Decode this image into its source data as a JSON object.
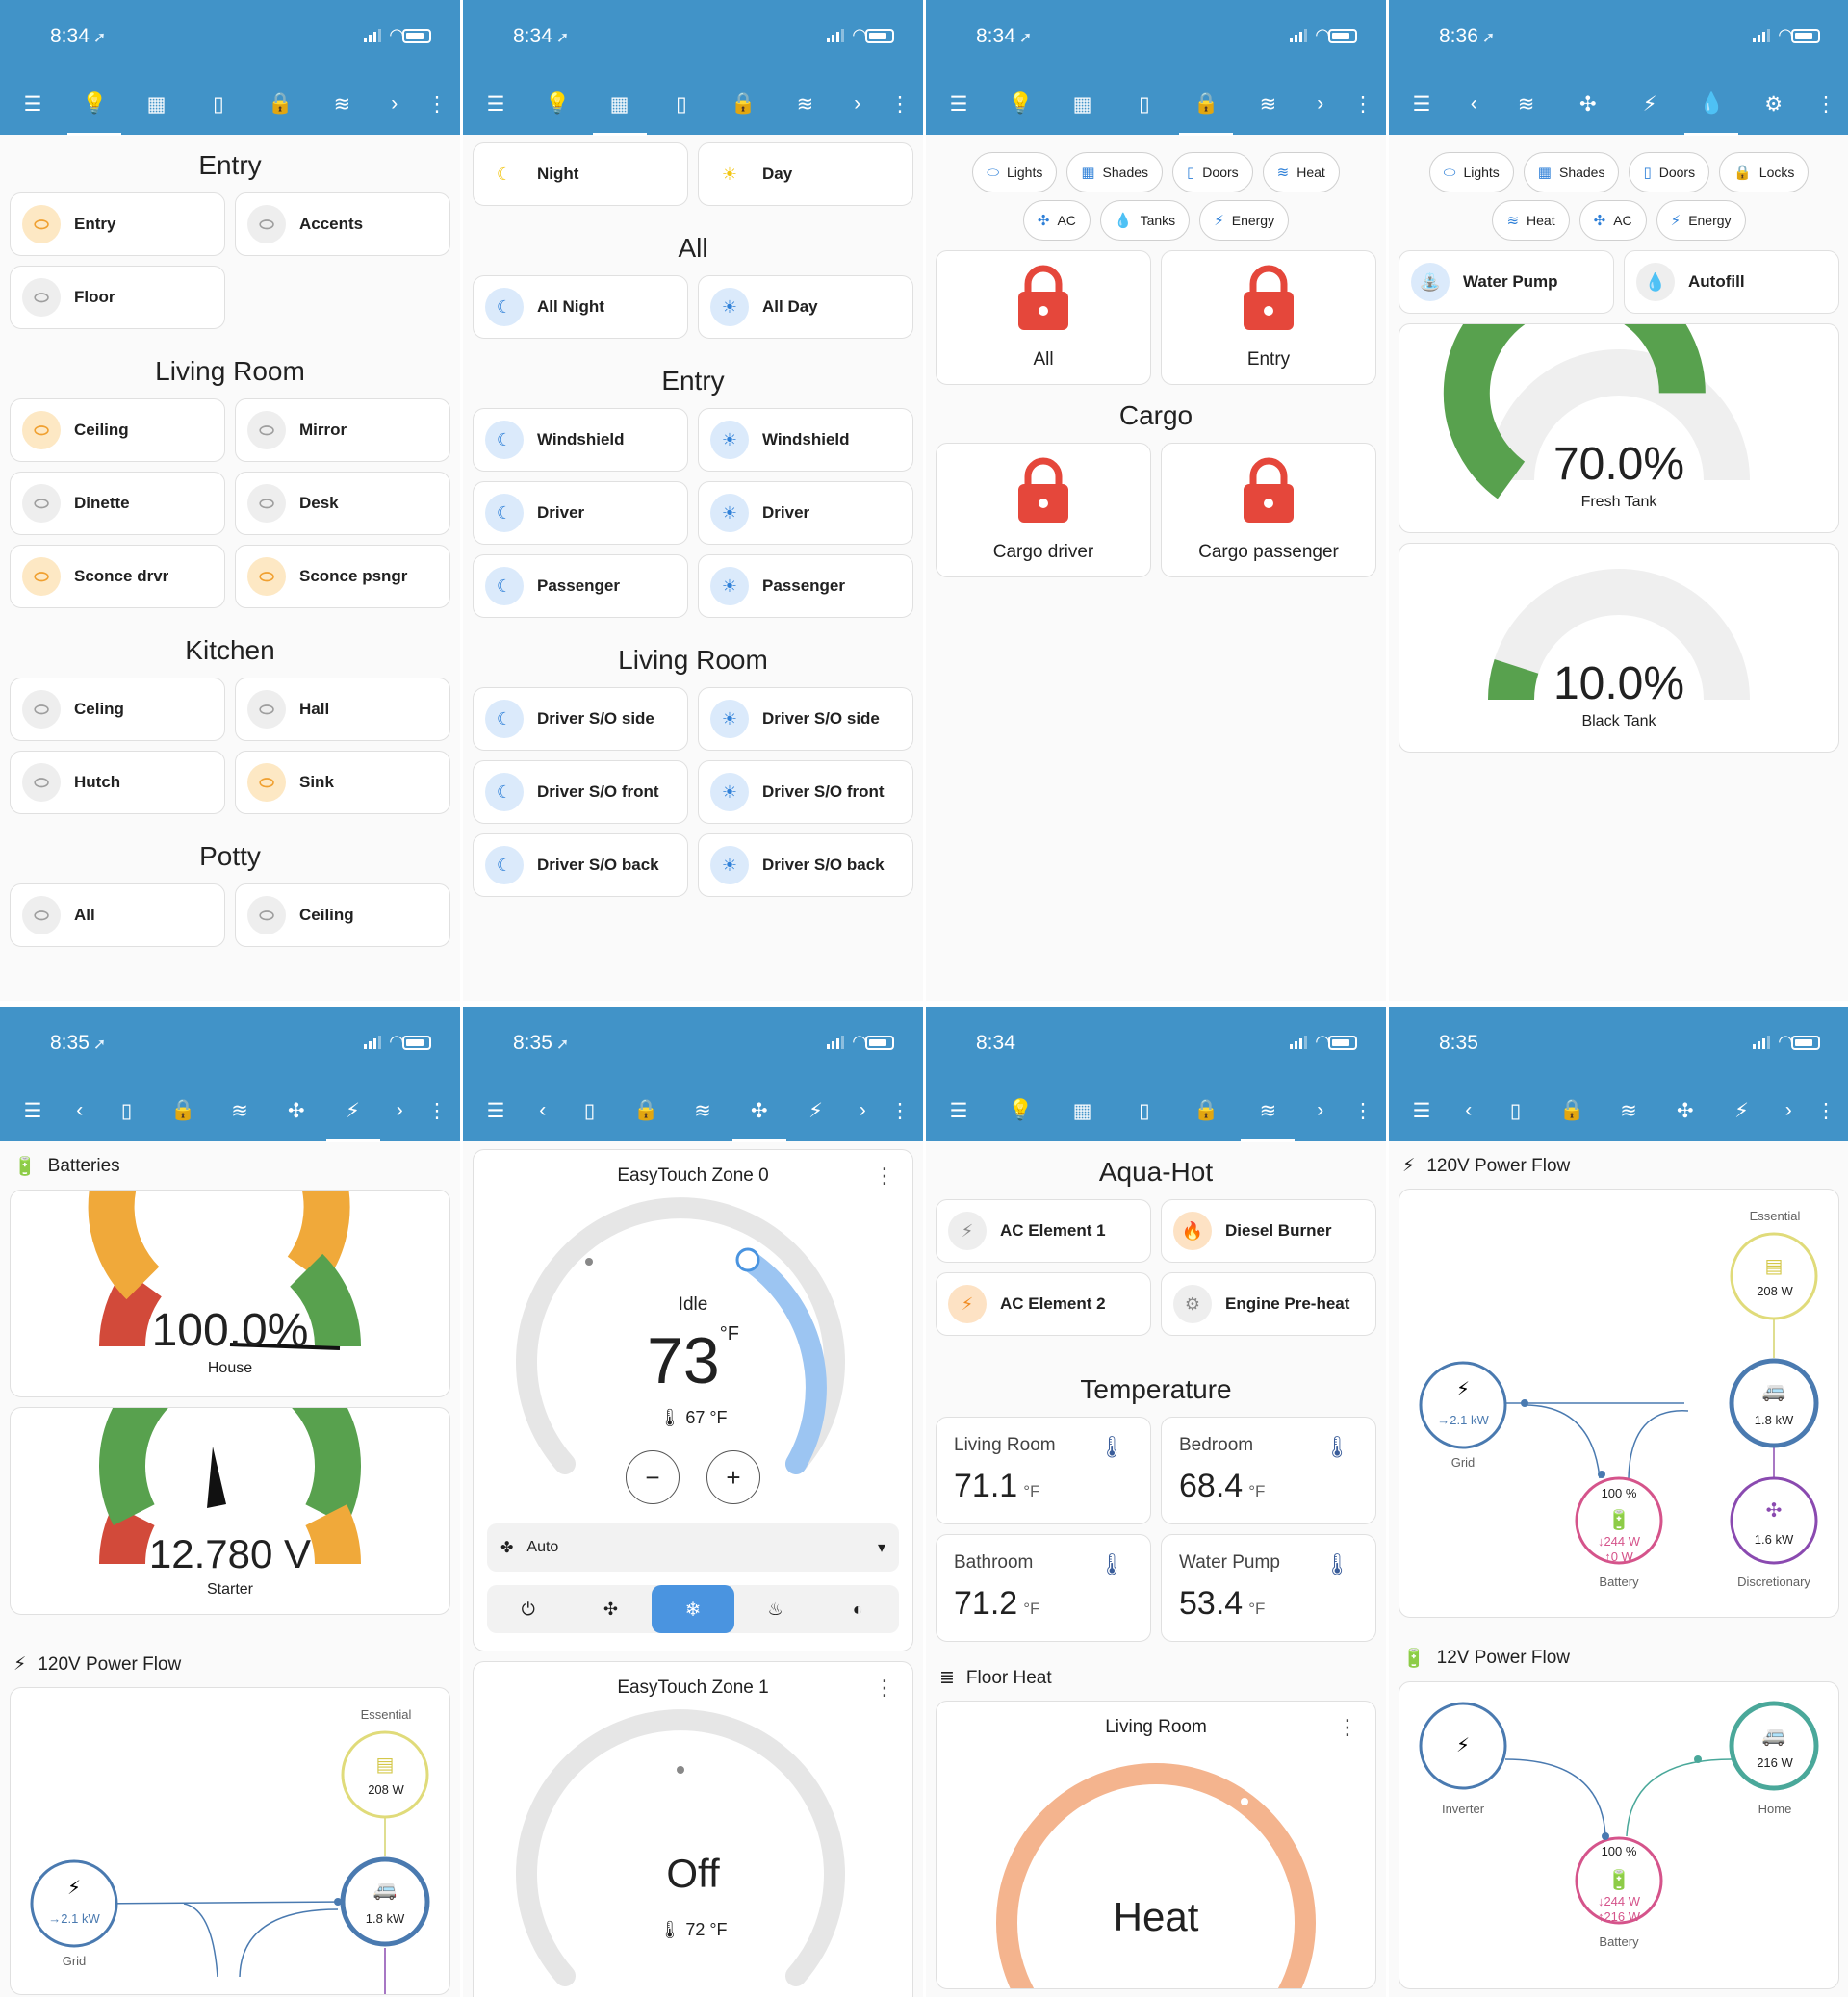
{
  "status": {
    "p1": {
      "time": "8:34"
    },
    "p2": {
      "time": "8:34"
    },
    "p3": {
      "time": "8:34"
    },
    "p4": {
      "time": "8:36"
    },
    "p5": {
      "time": "8:35"
    },
    "p6": {
      "time": "8:35"
    },
    "p7": {
      "time": "8:34"
    },
    "p8": {
      "time": "8:35"
    }
  },
  "lights": {
    "sections": [
      {
        "title": "Entry",
        "tiles": [
          {
            "label": "Entry",
            "on": true
          },
          {
            "label": "Accents",
            "on": false
          },
          {
            "label": "Floor",
            "on": false
          }
        ]
      },
      {
        "title": "Living Room",
        "tiles": [
          {
            "label": "Ceiling",
            "on": true
          },
          {
            "label": "Mirror",
            "on": false
          },
          {
            "label": "Dinette",
            "on": false
          },
          {
            "label": "Desk",
            "on": false
          },
          {
            "label": "Sconce drvr",
            "on": true
          },
          {
            "label": "Sconce psngr",
            "on": true
          }
        ]
      },
      {
        "title": "Kitchen",
        "tiles": [
          {
            "label": "Celing",
            "on": false
          },
          {
            "label": "Hall",
            "on": false
          },
          {
            "label": "Hutch",
            "on": false
          },
          {
            "label": "Sink",
            "on": true
          }
        ]
      },
      {
        "title": "Potty",
        "tiles": [
          {
            "label": "All",
            "on": false
          },
          {
            "label": "Ceiling",
            "on": false
          }
        ]
      }
    ]
  },
  "shades": {
    "top": [
      {
        "label": "Night"
      },
      {
        "label": "Day"
      }
    ],
    "sections": [
      {
        "title": "All",
        "rows": [
          [
            "All Night",
            "All Day"
          ]
        ]
      },
      {
        "title": "Entry",
        "rows": [
          [
            "Windshield",
            "Windshield"
          ],
          [
            "Driver",
            "Driver"
          ],
          [
            "Passenger",
            "Passenger"
          ]
        ]
      },
      {
        "title": "Living Room",
        "rows": [
          [
            "Driver S/O side",
            "Driver S/O side"
          ],
          [
            "Driver S/O front",
            "Driver S/O front"
          ],
          [
            "Driver S/O back",
            "Driver S/O back"
          ]
        ]
      }
    ]
  },
  "locks": {
    "chips_row1": [
      "Lights",
      "Shades",
      "Doors",
      "Heat"
    ],
    "chips_row2": [
      "AC",
      "Tanks",
      "Energy"
    ],
    "top": [
      "All",
      "Entry"
    ],
    "cargo_title": "Cargo",
    "cargo": [
      "Cargo driver",
      "Cargo passenger"
    ]
  },
  "tanks": {
    "chips_row1": [
      "Lights",
      "Shades",
      "Doors",
      "Locks"
    ],
    "chips_row2": [
      "Heat",
      "AC",
      "Energy"
    ],
    "pump": "Water Pump",
    "autofill": "Autofill",
    "fresh": {
      "value": "70.0%",
      "label": "Fresh Tank",
      "fraction": 0.7
    },
    "black": {
      "value": "10.0%",
      "label": "Black Tank",
      "fraction": 0.1
    }
  },
  "energy": {
    "batteries_title": "Batteries",
    "house": {
      "value": "100.0%",
      "label": "House"
    },
    "starter": {
      "value": "12.780 V",
      "label": "Starter"
    },
    "flow_title": "120V Power Flow",
    "essential": "Essential",
    "essential_w": "208 W",
    "grid_kw": "→2.1 kW",
    "grid": "Grid",
    "home_kw": "1.8 kW"
  },
  "ac": {
    "zone0": {
      "title": "EasyTouch Zone 0",
      "state": "Idle",
      "setpoint": "73",
      "unit": "°F",
      "current": "67 °F",
      "mode": "Auto"
    },
    "zone1": {
      "title": "EasyTouch Zone 1",
      "state": "Off",
      "current": "72 °F"
    }
  },
  "heat": {
    "title": "Aqua-Hot",
    "tiles": [
      [
        "AC Element 1",
        "Diesel Burner"
      ],
      [
        "AC Element 2",
        "Engine Pre-heat"
      ]
    ],
    "temp_title": "Temperature",
    "temps": [
      {
        "name": "Living Room",
        "value": "71.1",
        "unit": "°F"
      },
      {
        "name": "Bedroom",
        "value": "68.4",
        "unit": "°F"
      },
      {
        "name": "Bathroom",
        "value": "71.2",
        "unit": "°F"
      },
      {
        "name": "Water Pump",
        "value": "53.4",
        "unit": "°F"
      }
    ],
    "floor_title": "Floor Heat",
    "floor_card": {
      "title": "Living Room",
      "state": "Heat"
    }
  },
  "flow": {
    "t120": "120V Power Flow",
    "essential": "Essential",
    "essential_w": "208 W",
    "grid_kw": "→2.1 kW",
    "grid": "Grid",
    "home_kw": "1.8 kW",
    "battery_pct": "100 %",
    "battery_in": "↓244 W",
    "battery_out": "↑0 W",
    "battery": "Battery",
    "disc_kw": "1.6 kW",
    "discretionary": "Discretionary",
    "t12": "12V Power Flow",
    "inverter": "Inverter",
    "home_w": "216 W",
    "home": "Home",
    "b12_pct": "100 %",
    "b12_in": "↓244 W",
    "b12_out": "↑216 W",
    "b12": "Battery"
  }
}
